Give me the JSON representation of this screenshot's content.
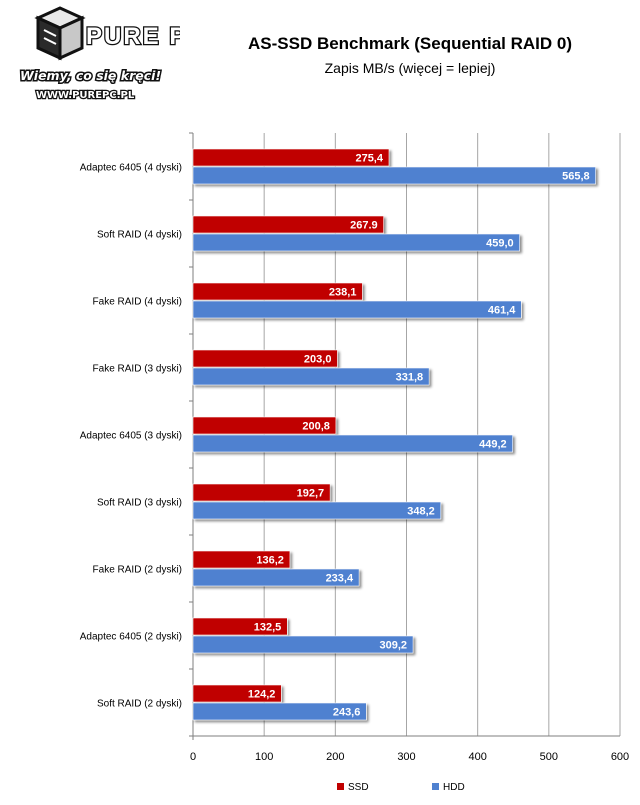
{
  "logo": {
    "brand": "PURE PC",
    "slogan": "Wiemy, co się kręci!",
    "url": "WWW.PUREPC.PL"
  },
  "chart_data": {
    "type": "bar",
    "orientation": "horizontal",
    "title": "AS-SSD Benchmark (Sequential RAID 0)",
    "subtitle": "Zapis MB/s (więcej = lepiej)",
    "categories": [
      "Adaptec 6405 (4 dyski)",
      "Soft RAID (4 dyski)",
      "Fake RAID (4 dyski)",
      "Fake RAID (3 dyski)",
      "Adaptec 6405 (3 dyski)",
      "Soft RAID (3 dyski)",
      "Fake RAID (2 dyski)",
      "Adaptec 6405 (2 dyski)",
      "Soft RAID (2 dyski)"
    ],
    "series": [
      {
        "name": "SSD",
        "color": "#c00000",
        "values": [
          275.4,
          267.9,
          238.1,
          203.0,
          200.8,
          192.7,
          136.2,
          132.5,
          124.2
        ],
        "labels": [
          "275,4",
          "267.9",
          "238,1",
          "203,0",
          "200,8",
          "192,7",
          "136,2",
          "132,5",
          "124,2"
        ]
      },
      {
        "name": "HDD",
        "color": "#4f81d0",
        "values": [
          565.8,
          459.0,
          461.4,
          331.8,
          449.2,
          348.2,
          233.4,
          309.2,
          243.6
        ],
        "labels": [
          "565,8",
          "459,0",
          "461,4",
          "331,8",
          "449,2",
          "348,2",
          "233,4",
          "309,2",
          "243,6"
        ]
      }
    ],
    "xlim": [
      0,
      600
    ],
    "xticks": [
      "0",
      "100",
      "200",
      "300",
      "400",
      "500",
      "600"
    ],
    "xtick_values": [
      0,
      100,
      200,
      300,
      400,
      500,
      600
    ],
    "grid": true,
    "legend": "bottom"
  }
}
